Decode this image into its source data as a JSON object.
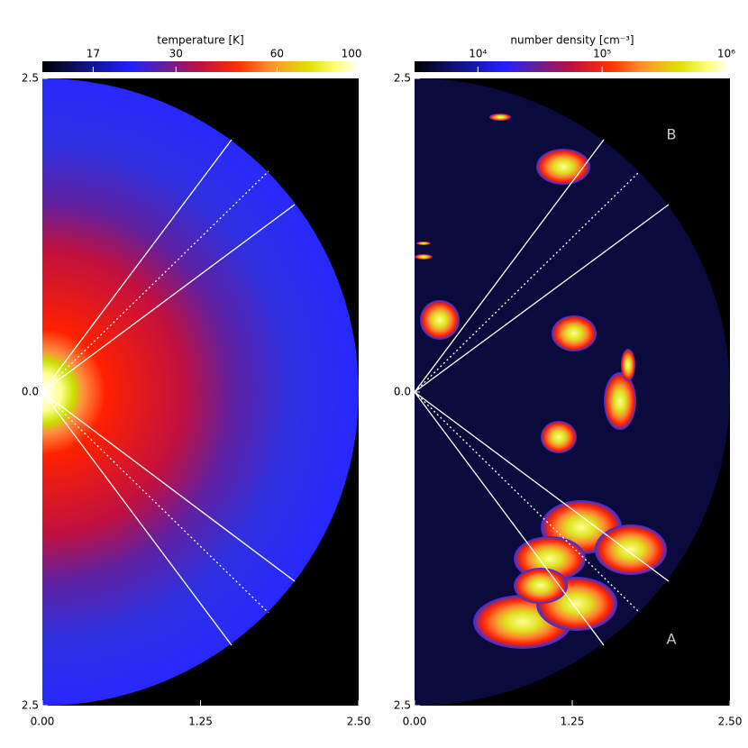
{
  "chart_data": [
    {
      "type": "heatmap",
      "colorbar": {
        "label": "temperature [K]",
        "scale": "log",
        "lim": [
          12,
          105
        ],
        "ticks": [
          17,
          30,
          60,
          100
        ]
      },
      "xlim": [
        0,
        2.5
      ],
      "xticks": [
        {
          "value": 0,
          "label": "0.00"
        },
        {
          "value": 1.25,
          "label": "1.25"
        },
        {
          "value": 2.5,
          "label": "2.50"
        }
      ],
      "ylim": [
        -2.5,
        2.5
      ],
      "yticks": [
        {
          "value": -2.5,
          "label": "2.5"
        },
        {
          "value": 0,
          "label": "0.0"
        },
        {
          "value": 2.5,
          "label": "2.5"
        }
      ]
    },
    {
      "type": "heatmap",
      "colorbar": {
        "label": "number density [cm⁻³]",
        "scale": "log",
        "lim": [
          3090,
          1070000
        ],
        "ticks": [
          {
            "value": 10000,
            "label": "10⁴"
          },
          {
            "value": 100000,
            "label": "10⁵"
          },
          {
            "value": 1000000,
            "label": "10⁶"
          }
        ]
      },
      "xlim": [
        0,
        2.5
      ],
      "xticks": [
        {
          "value": 0,
          "label": "0.00"
        },
        {
          "value": 1.25,
          "label": "1.25"
        },
        {
          "value": 2.5,
          "label": "2.50"
        }
      ],
      "ylim": [
        -2.5,
        2.5
      ],
      "yticks": [
        {
          "value": -2.5,
          "label": "2.5"
        },
        {
          "value": 0,
          "label": "0.0"
        },
        {
          "value": 2.5,
          "label": "2.5"
        }
      ],
      "annotations": [
        "B",
        "A"
      ]
    }
  ]
}
